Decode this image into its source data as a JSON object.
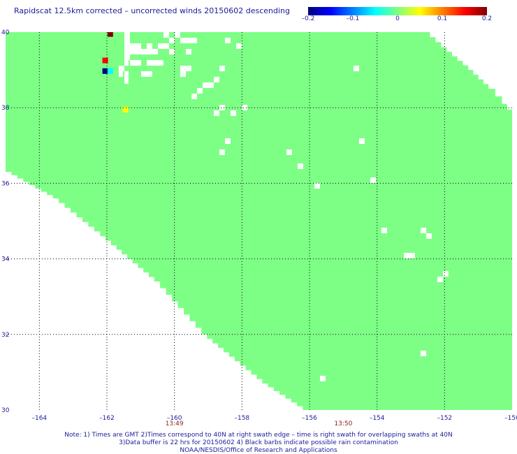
{
  "chart_data": {
    "type": "heatmap",
    "title": "Rapidscat 12.5km corrected – uncorrected winds 20150602 descending",
    "xlim": [
      -165,
      -150
    ],
    "ylim": [
      30,
      40
    ],
    "x_ticks": [
      -164,
      -162,
      -160,
      -158,
      -156,
      -154,
      -152,
      -150
    ],
    "x_tick_labels": [
      "–164",
      "–162",
      "–160",
      "–158",
      "–156",
      "–154",
      "–152",
      "–150"
    ],
    "y_ticks": [
      30,
      32,
      34,
      36,
      38,
      40
    ],
    "y_tick_labels": [
      "30",
      "32",
      "34",
      "36",
      "38",
      "40"
    ],
    "grid": true,
    "colorbar": {
      "range": [
        -0.2,
        0.2
      ],
      "ticks": [
        "–0.2",
        "–0.1",
        "0",
        "0.1",
        "0.2"
      ],
      "colors": [
        "#00007f",
        "#0000ff",
        "#007fff",
        "#00ffff",
        "#7fff7f",
        "#ffff00",
        "#ff7f00",
        "#ff0000",
        "#7f0000"
      ]
    },
    "field_value": 0,
    "field_color": "#7dff86",
    "time_labels": [
      {
        "x": -160,
        "label": "13:49"
      },
      {
        "x": -155,
        "label": "13:50"
      }
    ],
    "swath_boundary": {
      "north_lat": 40,
      "west_edge": [
        [
          -165,
          36.3
        ],
        [
          -163.6,
          35.6
        ],
        [
          -162.2,
          34.6
        ],
        [
          -160.6,
          33.4
        ],
        [
          -159.2,
          32.0
        ],
        [
          -157.4,
          30.7
        ],
        [
          -156.2,
          30.0
        ]
      ],
      "east_edge": [
        [
          -152.6,
          40
        ],
        [
          -152.1,
          39.6
        ],
        [
          -151.3,
          39.0
        ],
        [
          -150.7,
          38.5
        ],
        [
          -150.3,
          38.1
        ],
        [
          -150,
          37.8
        ]
      ]
    },
    "anomaly_cells": [
      {
        "lon": -161.9,
        "lat": 39.95,
        "value": 0.2
      },
      {
        "lon": -162.05,
        "lat": 39.25,
        "value": 0.16
      },
      {
        "lon": -162.05,
        "lat": 38.97,
        "value": -0.2
      },
      {
        "lon": -161.9,
        "lat": 38.97,
        "value": -0.05
      },
      {
        "lon": -161.45,
        "lat": 37.95,
        "value": 0.05
      }
    ],
    "notes": [
      "Note: 1) Times are GMT 2)Times correspond to 40N at right swath edge – time is right swath for overlapping swaths at 40N",
      "3)Data buffer is 22 hrs for 20150602 4) Black barbs indicate possible rain contamination",
      "NOAA/NESDIS/Office of Research and Applications"
    ]
  }
}
